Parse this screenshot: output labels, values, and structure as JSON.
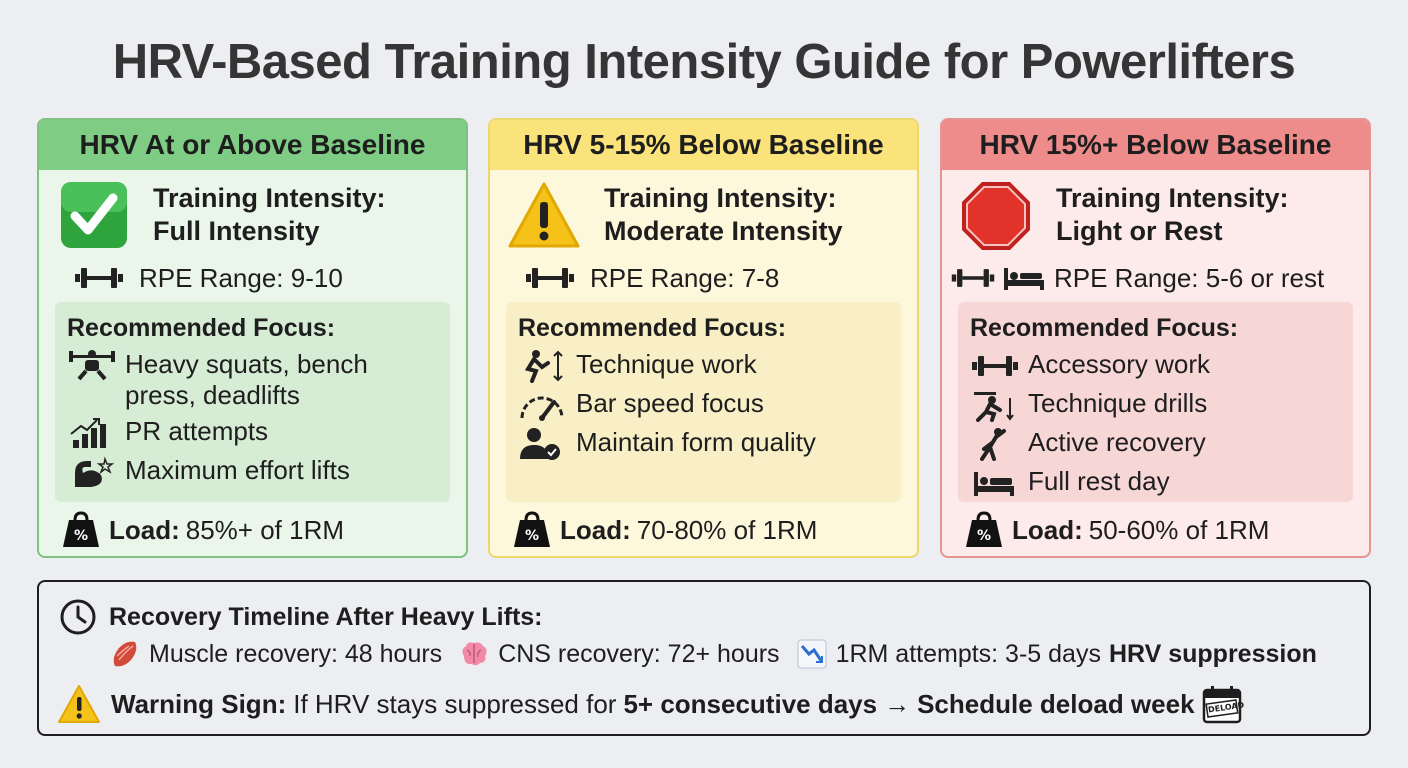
{
  "title": "HRV-Based Training Intensity Guide for Powerlifters",
  "colors": {
    "green_header": "#7fcc84",
    "yellow_header": "#f9e37a",
    "red_header": "#ee8c8c"
  },
  "cards": [
    {
      "header": "HRV At or Above Baseline",
      "status_icon": "check-icon",
      "intensity_label": "Training Intensity:",
      "intensity_value": "Full Intensity",
      "rpe": "RPE Range: 9-10",
      "focus_title": "Recommended Focus:",
      "focus_items": [
        {
          "icon": "squat-icon",
          "text": "Heavy squats, bench press, deadlifts"
        },
        {
          "icon": "chart-up-icon",
          "text": "PR attempts"
        },
        {
          "icon": "flex-icon",
          "text": "Maximum effort lifts"
        }
      ],
      "load_label": "Load:",
      "load_value": "85%+ of 1RM"
    },
    {
      "header": "HRV 5-15% Below Baseline",
      "status_icon": "warning-icon",
      "intensity_label": "Training Intensity:",
      "intensity_value": "Moderate Intensity",
      "rpe": "RPE Range: 7-8",
      "focus_title": "Recommended Focus:",
      "focus_items": [
        {
          "icon": "technique-icon",
          "text": "Technique work"
        },
        {
          "icon": "speedometer-icon",
          "text": "Bar speed focus"
        },
        {
          "icon": "user-check-icon",
          "text": "Maintain form quality"
        }
      ],
      "load_label": "Load:",
      "load_value": "70-80% of 1RM"
    },
    {
      "header": "HRV 15%+ Below Baseline",
      "status_icon": "stop-icon",
      "intensity_label": "Training Intensity:",
      "intensity_value": "Light or Rest",
      "rpe": "RPE Range: 5-6 or rest",
      "focus_title": "Recommended Focus:",
      "focus_items": [
        {
          "icon": "dumbbell-icon",
          "text": "Accessory work"
        },
        {
          "icon": "drill-icon",
          "text": "Technique drills"
        },
        {
          "icon": "stretch-icon",
          "text": "Active recovery"
        },
        {
          "icon": "bed-icon",
          "text": "Full rest day"
        }
      ],
      "load_label": "Load:",
      "load_value": "50-60% of 1RM"
    }
  ],
  "timeline": {
    "title": "Recovery Timeline After Heavy Lifts:",
    "muscle": "Muscle recovery: 48 hours",
    "cns": "CNS recovery: 72+ hours",
    "attempts": "1RM attempts: 3-5 days",
    "suppression": "HRV suppression",
    "warning_label": "Warning Sign:",
    "warning_text": "If HRV stays suppressed for",
    "warning_days": "5+ consecutive days",
    "arrow": "→",
    "warning_action": "Schedule deload week",
    "deload_badge": "DELOAD"
  }
}
